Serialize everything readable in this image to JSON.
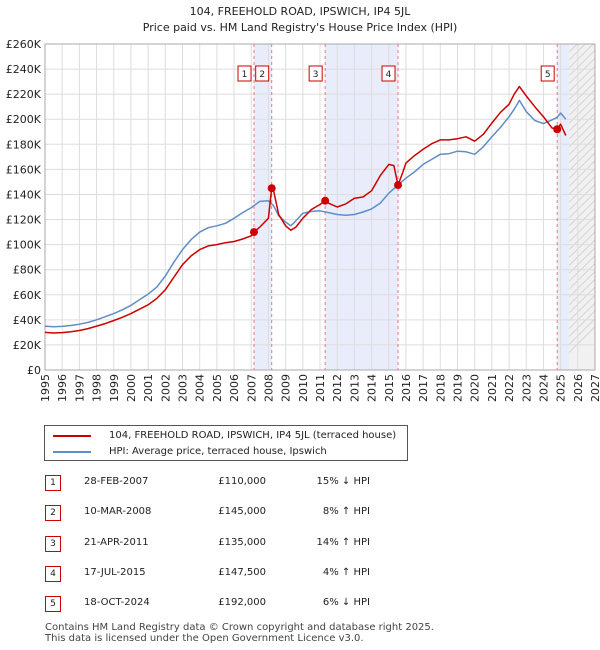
{
  "chart_data": {
    "type": "line",
    "title": "104, FREEHOLD ROAD, IPSWICH, IP4 5JL",
    "subtitle": "Price paid vs. HM Land Registry's House Price Index (HPI)",
    "xlabel": "",
    "ylabel": "",
    "xlim": [
      1995,
      2027
    ],
    "ylim": [
      0,
      260000
    ],
    "x_ticks": [
      "1995",
      "1996",
      "1997",
      "1998",
      "1999",
      "2000",
      "2001",
      "2002",
      "2003",
      "2004",
      "2005",
      "2006",
      "2007",
      "2008",
      "2009",
      "2010",
      "2011",
      "2012",
      "2013",
      "2014",
      "2015",
      "2016",
      "2017",
      "2018",
      "2019",
      "2020",
      "2021",
      "2022",
      "2023",
      "2024",
      "2025",
      "2026",
      "2027"
    ],
    "y_ticks": [
      {
        "value": 0,
        "label": "£0"
      },
      {
        "value": 20000,
        "label": "£20K"
      },
      {
        "value": 40000,
        "label": "£40K"
      },
      {
        "value": 60000,
        "label": "£60K"
      },
      {
        "value": 80000,
        "label": "£80K"
      },
      {
        "value": 100000,
        "label": "£100K"
      },
      {
        "value": 120000,
        "label": "£120K"
      },
      {
        "value": 140000,
        "label": "£140K"
      },
      {
        "value": 160000,
        "label": "£160K"
      },
      {
        "value": 180000,
        "label": "£180K"
      },
      {
        "value": 200000,
        "label": "£200K"
      },
      {
        "value": 220000,
        "label": "£220K"
      },
      {
        "value": 240000,
        "label": "£240K"
      },
      {
        "value": 260000,
        "label": "£260K"
      }
    ],
    "future_from": 2025.5,
    "series": [
      {
        "name": "104, FREEHOLD ROAD, IPSWICH, IP4 5JL (terraced house)",
        "color": "#cc0000",
        "x": [
          1995.0,
          1995.5,
          1996.0,
          1996.5,
          1997.0,
          1997.5,
          1998.0,
          1998.5,
          1999.0,
          1999.5,
          2000.0,
          2000.5,
          2001.0,
          2001.5,
          2002.0,
          2002.5,
          2003.0,
          2003.5,
          2004.0,
          2004.5,
          2005.0,
          2005.5,
          2006.0,
          2006.5,
          2007.0,
          2007.16,
          2007.5,
          2008.0,
          2008.19,
          2008.3,
          2008.6,
          2009.0,
          2009.3,
          2009.6,
          2010.0,
          2010.5,
          2011.0,
          2011.3,
          2011.5,
          2012.0,
          2012.5,
          2013.0,
          2013.5,
          2014.0,
          2014.5,
          2015.0,
          2015.3,
          2015.54,
          2015.8,
          2016.0,
          2016.5,
          2017.0,
          2017.5,
          2018.0,
          2018.5,
          2019.0,
          2019.5,
          2020.0,
          2020.5,
          2021.0,
          2021.5,
          2022.0,
          2022.3,
          2022.6,
          2023.0,
          2023.5,
          2024.0,
          2024.5,
          2024.8,
          2025.0,
          2025.3
        ],
        "y": [
          30000,
          29500,
          29800,
          30500,
          31500,
          33000,
          35000,
          37000,
          39500,
          42000,
          45000,
          48500,
          52000,
          57000,
          64000,
          74000,
          84000,
          91000,
          96000,
          99000,
          100000,
          101500,
          102500,
          104500,
          107000,
          110000,
          114000,
          121000,
          145000,
          143000,
          124000,
          115000,
          111500,
          114000,
          121000,
          128000,
          132000,
          135000,
          133000,
          130000,
          132500,
          137000,
          138000,
          143000,
          155000,
          164000,
          163000,
          147500,
          157000,
          165000,
          171000,
          176000,
          180500,
          183500,
          183500,
          184500,
          186000,
          182500,
          188000,
          197000,
          205500,
          212000,
          220000,
          226000,
          218500,
          210000,
          202000,
          193000,
          192000,
          196000,
          187000
        ]
      },
      {
        "name": "HPI: Average price, terraced house, Ipswich",
        "color": "#5f8dc8",
        "x": [
          1995.0,
          1995.5,
          1996.0,
          1996.5,
          1997.0,
          1997.5,
          1998.0,
          1998.5,
          1999.0,
          1999.5,
          2000.0,
          2000.5,
          2001.0,
          2001.5,
          2002.0,
          2002.5,
          2003.0,
          2003.5,
          2004.0,
          2004.5,
          2005.0,
          2005.5,
          2006.0,
          2006.5,
          2007.0,
          2007.5,
          2008.0,
          2008.3,
          2008.6,
          2009.0,
          2009.3,
          2009.6,
          2010.0,
          2010.5,
          2011.0,
          2011.5,
          2012.0,
          2012.5,
          2013.0,
          2013.5,
          2014.0,
          2014.5,
          2015.0,
          2015.5,
          2016.0,
          2016.5,
          2017.0,
          2017.5,
          2018.0,
          2018.5,
          2019.0,
          2019.5,
          2020.0,
          2020.5,
          2021.0,
          2021.5,
          2022.0,
          2022.3,
          2022.6,
          2023.0,
          2023.5,
          2024.0,
          2024.5,
          2024.8,
          2025.0,
          2025.3
        ],
        "y": [
          35000,
          34500,
          34800,
          35500,
          36500,
          38000,
          40000,
          42500,
          45000,
          48000,
          51500,
          56000,
          60500,
          66000,
          75000,
          86000,
          96000,
          104000,
          110000,
          113500,
          115000,
          117000,
          121000,
          125500,
          129500,
          134500,
          135000,
          131000,
          123000,
          118000,
          115000,
          119000,
          125000,
          126500,
          127000,
          125500,
          124000,
          123500,
          124000,
          126000,
          128500,
          133000,
          141000,
          147000,
          153000,
          158000,
          164000,
          168000,
          172000,
          172500,
          174500,
          174000,
          172000,
          178000,
          186000,
          193500,
          202000,
          208000,
          215000,
          206000,
          199000,
          196500,
          199500,
          201500,
          205000,
          200000
        ]
      }
    ],
    "transactions": [
      {
        "num": "1",
        "date": "28-FEB-2007",
        "price": "£110,000",
        "hpi": "15% ↓ HPI",
        "x": 2007.16,
        "value": 110000
      },
      {
        "num": "2",
        "date": "10-MAR-2008",
        "price": "£145,000",
        "hpi": "8% ↑ HPI",
        "x": 2008.19,
        "value": 145000
      },
      {
        "num": "3",
        "date": "21-APR-2011",
        "price": "£135,000",
        "hpi": "14% ↑ HPI",
        "x": 2011.3,
        "value": 135000
      },
      {
        "num": "4",
        "date": "17-JUL-2015",
        "price": "£147,500",
        "hpi": "4% ↑ HPI",
        "x": 2015.54,
        "value": 147500
      },
      {
        "num": "5",
        "date": "18-OCT-2024",
        "price": "£192,000",
        "hpi": "6% ↓ HPI",
        "x": 2024.8,
        "value": 192000
      }
    ],
    "shaded_spans": [
      [
        2007.16,
        2008.19
      ],
      [
        2011.3,
        2015.54
      ],
      [
        2024.8,
        2025.5
      ]
    ]
  },
  "legend": {
    "property_label": "104, FREEHOLD ROAD, IPSWICH, IP4 5JL (terraced house)",
    "hpi_label": "HPI: Average price, terraced house, Ipswich",
    "property_color": "#cc0000",
    "hpi_color": "#5f8dc8"
  },
  "footer": {
    "line1": "Contains HM Land Registry data © Crown copyright and database right 2025.",
    "line2": "This data is licensed under the Open Government Licence v3.0."
  }
}
